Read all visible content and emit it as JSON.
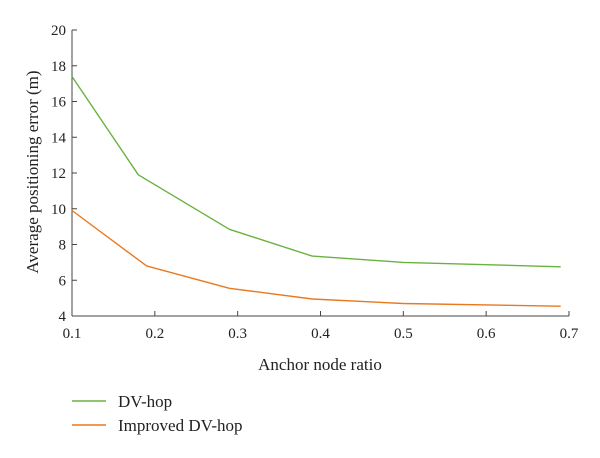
{
  "chart_data": {
    "type": "line",
    "title": "",
    "xlabel": "Anchor node ratio",
    "ylabel": "Average positioning error (m)",
    "xlim": [
      0.1,
      0.7
    ],
    "ylim": [
      4,
      20
    ],
    "xticks": [
      0.1,
      0.2,
      0.3,
      0.4,
      0.5,
      0.6,
      0.7
    ],
    "xtick_labels": [
      "0.1",
      "0.2",
      "0.3",
      "0.4",
      "0.5",
      "0.6",
      "0.7"
    ],
    "yticks": [
      4,
      6,
      8,
      10,
      12,
      14,
      16,
      18,
      20
    ],
    "ytick_labels": [
      "4",
      "6",
      "8",
      "10",
      "12",
      "14",
      "16",
      "18",
      "20"
    ],
    "grid": false,
    "legend_position": "bottom-left",
    "series": [
      {
        "name": "DV-hop",
        "color": "#6ab23e",
        "x": [
          0.1,
          0.18,
          0.29,
          0.39,
          0.5,
          0.69
        ],
        "y": [
          17.4,
          11.9,
          8.85,
          7.35,
          7.0,
          6.75
        ]
      },
      {
        "name": "Improved DV-hop",
        "color": "#e8791f",
        "x": [
          0.1,
          0.19,
          0.29,
          0.39,
          0.5,
          0.69
        ],
        "y": [
          9.9,
          6.8,
          5.55,
          4.95,
          4.7,
          4.55
        ]
      }
    ]
  }
}
